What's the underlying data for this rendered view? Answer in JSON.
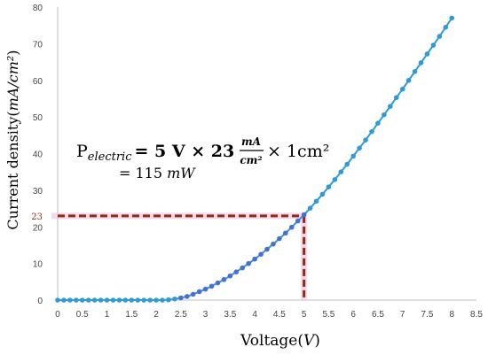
{
  "chart_data": {
    "type": "line",
    "xlabel_text": "Voltage",
    "xlabel_unit": "V",
    "ylabel_text": "Current density",
    "ylabel_unit": "mA/cm²",
    "xlim": [
      0,
      8.5
    ],
    "ylim": [
      0,
      80
    ],
    "xticks": [
      0,
      0.5,
      1,
      1.5,
      2,
      2.5,
      3,
      3.5,
      4,
      4.5,
      5,
      5.5,
      6,
      6.5,
      7,
      7.5,
      8,
      8.5
    ],
    "yticks": [
      0,
      10,
      20,
      30,
      40,
      50,
      60,
      70,
      80
    ],
    "x": [
      0.0,
      0.125,
      0.25,
      0.375,
      0.5,
      0.625,
      0.75,
      0.875,
      1.0,
      1.125,
      1.25,
      1.375,
      1.5,
      1.625,
      1.75,
      1.875,
      2.0,
      2.125,
      2.25,
      2.375,
      2.5,
      2.625,
      2.75,
      2.875,
      3.0,
      3.125,
      3.25,
      3.375,
      3.5,
      3.625,
      3.75,
      3.875,
      4.0,
      4.125,
      4.25,
      4.375,
      4.5,
      4.625,
      4.75,
      4.875,
      5.0,
      5.125,
      5.25,
      5.375,
      5.5,
      5.625,
      5.75,
      5.875,
      6.0,
      6.125,
      6.25,
      6.375,
      6.5,
      6.625,
      6.75,
      6.875,
      7.0,
      7.125,
      7.25,
      7.375,
      7.5,
      7.625,
      7.75,
      7.875,
      8.0
    ],
    "y": [
      0.0,
      0.0,
      0.0,
      0.0,
      0.0,
      0.0,
      0.0,
      0.0,
      0.0,
      0.0,
      0.0,
      0.0,
      0.0,
      0.0,
      0.0,
      0.0,
      0.0,
      0.0,
      0.1,
      0.3,
      0.6,
      1.0,
      1.6,
      2.3,
      3.0,
      3.8,
      4.7,
      5.6,
      6.6,
      7.7,
      8.8,
      10.0,
      11.2,
      12.5,
      13.9,
      15.3,
      16.8,
      18.3,
      19.9,
      21.6,
      23.3,
      25.1,
      27.0,
      28.9,
      30.9,
      32.9,
      35.0,
      37.1,
      39.3,
      41.5,
      43.7,
      46.0,
      48.3,
      50.6,
      52.9,
      55.3,
      57.6,
      60.0,
      62.4,
      64.8,
      67.2,
      69.6,
      72.0,
      74.5,
      77.0
    ],
    "series_color": "#2e9ad6",
    "marker_color_low": "#4a6ed8",
    "operating_point": {
      "x": 5,
      "y": 23,
      "label": "23",
      "line_color": "#8b2c14",
      "highlight_color": "#f4c6e6"
    },
    "equation": {
      "line1_prefix": "P",
      "line1_sub": "electric",
      "line1_rest": "= 5 V  ×  23",
      "fraction_num": "mA",
      "fraction_den": "cm²",
      "line1_tail": "× 1cm²",
      "line2": "= 115 ",
      "line2_unit": "mW"
    }
  }
}
